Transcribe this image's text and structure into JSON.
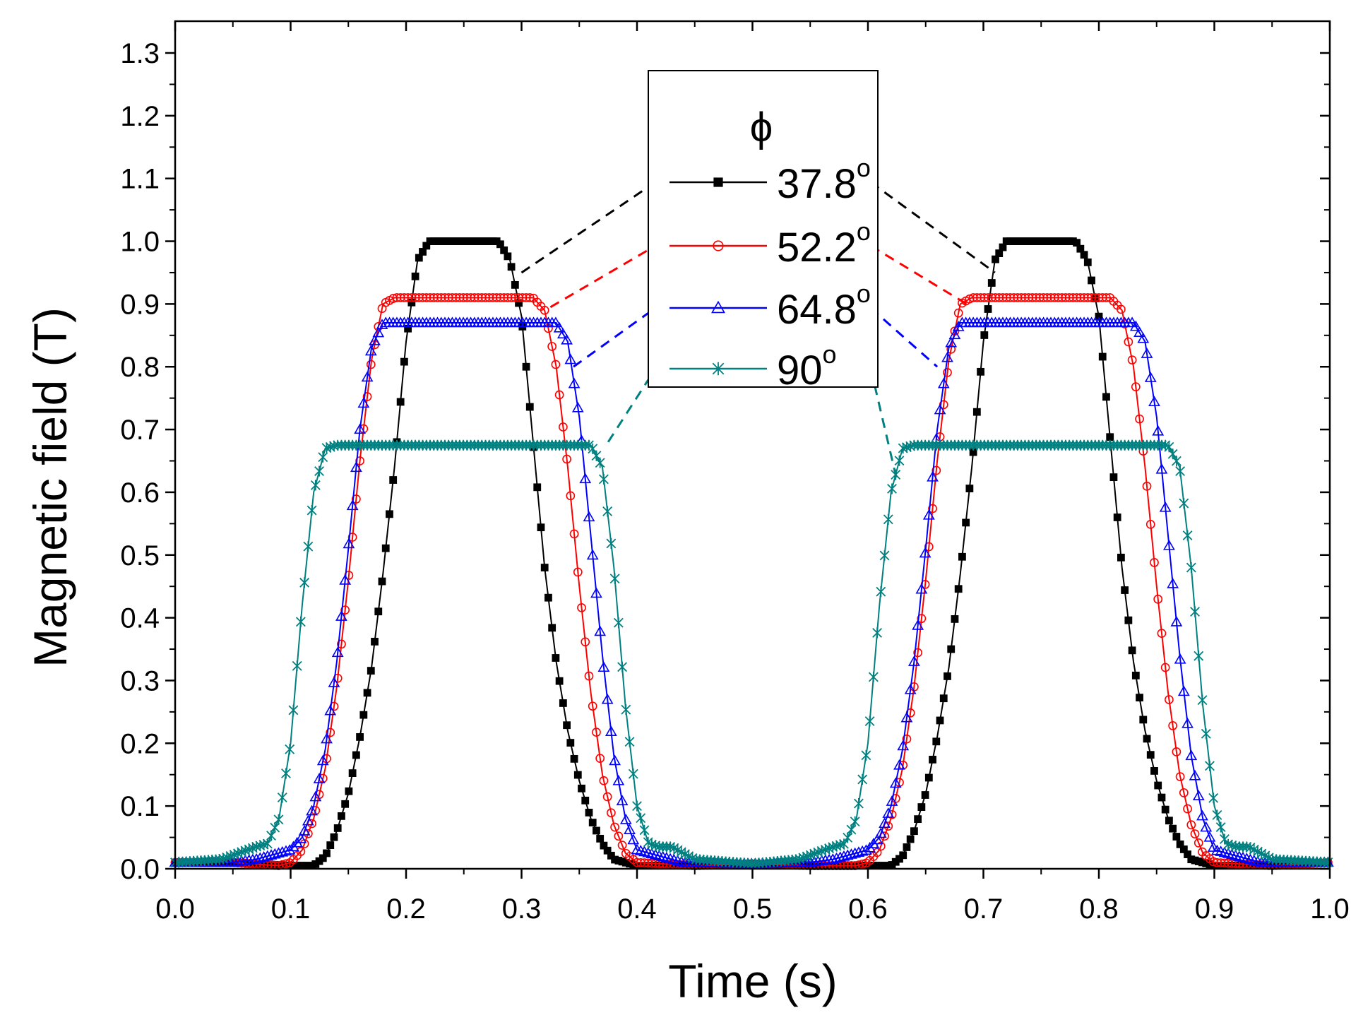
{
  "chart_data": {
    "type": "scatter",
    "title": "",
    "xlabel": "Time (s)",
    "ylabel": "Magnetic field (T)",
    "xlim": [
      0.0,
      1.0
    ],
    "ylim": [
      0.0,
      1.3
    ],
    "x_ticks": [
      "0.0",
      "0.1",
      "0.2",
      "0.3",
      "0.4",
      "0.5",
      "0.6",
      "0.7",
      "0.8",
      "0.9",
      "1.0"
    ],
    "y_ticks": [
      "0.0",
      "0.1",
      "0.2",
      "0.3",
      "0.4",
      "0.5",
      "0.6",
      "0.7",
      "0.8",
      "0.9",
      "1.0",
      "1.1",
      "1.2",
      "1.3"
    ],
    "grid": false,
    "legend": {
      "title": "ϕ",
      "placement": "top-center",
      "leader_lines": true,
      "entries": [
        {
          "label": "37.8°",
          "label_main": "37.8",
          "label_sup": "o",
          "color": "#000000",
          "marker": "filled-square"
        },
        {
          "label": "52.2°",
          "label_main": "52.2",
          "label_sup": "o",
          "color": "#ff0000",
          "marker": "open-circle"
        },
        {
          "label": "64.8°",
          "label_main": "64.8",
          "label_sup": "o",
          "color": "#0000ff",
          "marker": "open-triangle"
        },
        {
          "label": "90°",
          "label_main": "90",
          "label_sup": "o",
          "color": "#008080",
          "marker": "star"
        }
      ]
    },
    "series": [
      {
        "name": "37.8°",
        "color": "#000000",
        "marker": "filled-square",
        "x": [
          0.0,
          0.05,
          0.1,
          0.12,
          0.13,
          0.14,
          0.15,
          0.16,
          0.17,
          0.18,
          0.19,
          0.2,
          0.21,
          0.22,
          0.28,
          0.29,
          0.3,
          0.31,
          0.32,
          0.33,
          0.34,
          0.35,
          0.36,
          0.37,
          0.38,
          0.4,
          0.45,
          0.5,
          0.55,
          0.6,
          0.62,
          0.63,
          0.64,
          0.65,
          0.66,
          0.67,
          0.68,
          0.69,
          0.7,
          0.71,
          0.72,
          0.78,
          0.79,
          0.8,
          0.81,
          0.82,
          0.83,
          0.84,
          0.85,
          0.86,
          0.87,
          0.88,
          0.9,
          0.95,
          1.0
        ],
        "y": [
          0.01,
          0.01,
          0.005,
          0.005,
          0.02,
          0.06,
          0.12,
          0.21,
          0.32,
          0.47,
          0.64,
          0.84,
          0.97,
          1.0,
          1.0,
          0.97,
          0.88,
          0.68,
          0.48,
          0.33,
          0.22,
          0.14,
          0.08,
          0.04,
          0.015,
          0.005,
          0.005,
          0.008,
          0.005,
          0.005,
          0.005,
          0.02,
          0.06,
          0.12,
          0.21,
          0.32,
          0.47,
          0.64,
          0.84,
          0.97,
          1.0,
          1.0,
          0.97,
          0.88,
          0.68,
          0.48,
          0.33,
          0.22,
          0.14,
          0.08,
          0.04,
          0.015,
          0.005,
          0.005,
          0.01
        ]
      },
      {
        "name": "52.2°",
        "color": "#ff0000",
        "marker": "open-circle",
        "x": [
          0.0,
          0.05,
          0.09,
          0.1,
          0.11,
          0.12,
          0.13,
          0.14,
          0.15,
          0.16,
          0.17,
          0.18,
          0.19,
          0.31,
          0.32,
          0.33,
          0.34,
          0.35,
          0.36,
          0.37,
          0.38,
          0.39,
          0.4,
          0.45,
          0.5,
          0.55,
          0.59,
          0.6,
          0.61,
          0.62,
          0.63,
          0.64,
          0.65,
          0.66,
          0.67,
          0.68,
          0.69,
          0.81,
          0.82,
          0.83,
          0.84,
          0.85,
          0.86,
          0.87,
          0.88,
          0.89,
          0.9,
          0.95,
          1.0
        ],
        "y": [
          0.01,
          0.01,
          0.005,
          0.01,
          0.03,
          0.08,
          0.16,
          0.29,
          0.46,
          0.65,
          0.81,
          0.9,
          0.91,
          0.91,
          0.89,
          0.8,
          0.64,
          0.45,
          0.28,
          0.15,
          0.07,
          0.025,
          0.01,
          0.005,
          0.008,
          0.005,
          0.005,
          0.01,
          0.03,
          0.08,
          0.16,
          0.29,
          0.46,
          0.65,
          0.81,
          0.9,
          0.91,
          0.91,
          0.89,
          0.8,
          0.64,
          0.45,
          0.28,
          0.15,
          0.07,
          0.025,
          0.01,
          0.005,
          0.01
        ]
      },
      {
        "name": "64.8°",
        "color": "#0000ff",
        "marker": "open-triangle",
        "x": [
          0.0,
          0.05,
          0.07,
          0.08,
          0.09,
          0.1,
          0.11,
          0.12,
          0.13,
          0.14,
          0.15,
          0.16,
          0.17,
          0.18,
          0.33,
          0.34,
          0.35,
          0.36,
          0.37,
          0.38,
          0.39,
          0.4,
          0.42,
          0.44,
          0.5,
          0.55,
          0.57,
          0.58,
          0.59,
          0.6,
          0.61,
          0.62,
          0.63,
          0.64,
          0.65,
          0.66,
          0.67,
          0.68,
          0.83,
          0.84,
          0.85,
          0.86,
          0.87,
          0.88,
          0.89,
          0.9,
          0.92,
          0.94,
          1.0
        ],
        "y": [
          0.01,
          0.01,
          0.015,
          0.02,
          0.025,
          0.03,
          0.05,
          0.1,
          0.19,
          0.33,
          0.51,
          0.7,
          0.83,
          0.87,
          0.87,
          0.84,
          0.72,
          0.53,
          0.34,
          0.18,
          0.08,
          0.03,
          0.02,
          0.01,
          0.008,
          0.01,
          0.015,
          0.02,
          0.025,
          0.03,
          0.05,
          0.1,
          0.19,
          0.33,
          0.51,
          0.7,
          0.83,
          0.87,
          0.87,
          0.84,
          0.72,
          0.53,
          0.34,
          0.18,
          0.08,
          0.03,
          0.02,
          0.01,
          0.01
        ]
      },
      {
        "name": "90°",
        "color": "#008080",
        "marker": "star",
        "x": [
          0.0,
          0.04,
          0.07,
          0.08,
          0.09,
          0.1,
          0.11,
          0.12,
          0.13,
          0.14,
          0.36,
          0.37,
          0.38,
          0.39,
          0.4,
          0.41,
          0.42,
          0.43,
          0.45,
          0.5,
          0.54,
          0.57,
          0.58,
          0.59,
          0.6,
          0.61,
          0.62,
          0.63,
          0.64,
          0.86,
          0.87,
          0.88,
          0.89,
          0.9,
          0.91,
          0.92,
          0.93,
          0.95,
          1.0
        ],
        "y": [
          0.01,
          0.015,
          0.035,
          0.04,
          0.08,
          0.2,
          0.42,
          0.6,
          0.67,
          0.675,
          0.675,
          0.64,
          0.48,
          0.26,
          0.1,
          0.04,
          0.035,
          0.035,
          0.015,
          0.008,
          0.015,
          0.035,
          0.04,
          0.08,
          0.2,
          0.42,
          0.6,
          0.67,
          0.675,
          0.675,
          0.64,
          0.48,
          0.26,
          0.1,
          0.04,
          0.035,
          0.035,
          0.015,
          0.01
        ]
      }
    ]
  }
}
